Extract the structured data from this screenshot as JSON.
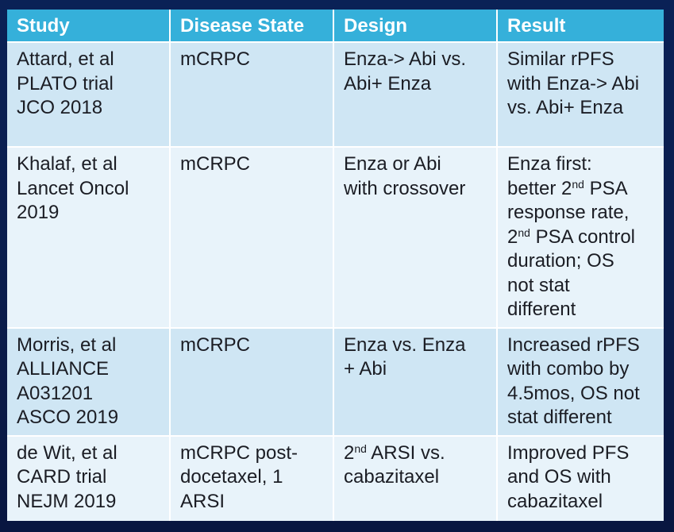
{
  "table": {
    "headers": [
      "Study",
      "Disease State",
      "Design",
      "Result"
    ],
    "rows": [
      {
        "study": [
          "Attard, et al",
          "PLATO trial",
          "JCO 2018"
        ],
        "disease_state": [
          "mCRPC"
        ],
        "design": [
          "Enza-> Abi vs.",
          "Abi+ Enza"
        ],
        "result": [
          "Similar rPFS",
          "with Enza-> Abi",
          "vs. Abi+ Enza"
        ]
      },
      {
        "study": [
          "Khalaf, et al",
          "Lancet Oncol",
          "2019"
        ],
        "disease_state": [
          "mCRPC"
        ],
        "design": [
          "Enza or Abi",
          "with crossover"
        ],
        "result_parts": {
          "l1": "Enza first:",
          "l2_pre": "better 2",
          "l2_sup": "nd",
          "l2_post": " PSA",
          "l3": "response rate,",
          "l4_pre": "2",
          "l4_sup": "nd",
          "l4_post": " PSA control",
          "l5": "duration; OS",
          "l6": "not stat",
          "l7": "different"
        }
      },
      {
        "study": [
          "Morris, et al",
          "ALLIANCE",
          "A031201",
          "ASCO 2019"
        ],
        "disease_state": [
          "mCRPC"
        ],
        "design": [
          "Enza vs. Enza",
          "+ Abi"
        ],
        "result": [
          "Increased rPFS",
          "with combo by",
          "4.5mos, OS not",
          "stat different"
        ]
      },
      {
        "study": [
          "de Wit, et al",
          "CARD trial",
          "NEJM 2019"
        ],
        "disease_state": [
          "mCRPC post-",
          "docetaxel, 1",
          "ARSI"
        ],
        "design_parts": {
          "l1_pre": "2",
          "l1_sup": "nd",
          "l1_post": " ARSI vs.",
          "l2": "cabazitaxel"
        },
        "result": [
          "Improved PFS",
          "and OS with",
          "cabazitaxel"
        ]
      }
    ]
  }
}
